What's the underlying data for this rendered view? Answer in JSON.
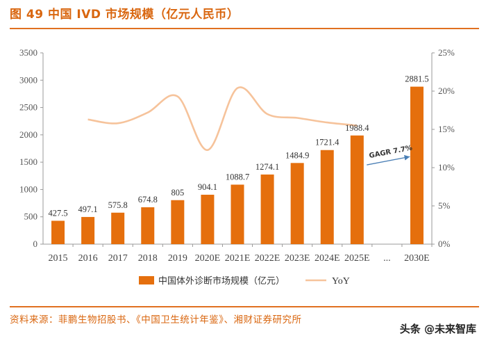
{
  "header": {
    "title": "图 49 中国 IVD 市场规模（亿元人民币）"
  },
  "footer": {
    "source": "资料来源：菲鹏生物招股书、《中国卫生统计年鉴》、湘财证券研究所",
    "watermark": "头条 @未来智库"
  },
  "colors": {
    "bar": "#e56f0d",
    "line": "#f6c39b",
    "accent": "#d9660f",
    "arrow": "#4a7fb5"
  },
  "chart_data": {
    "type": "bar",
    "title": "中国 IVD 市场规模（亿元人民币）",
    "categories": [
      "2015",
      "2016",
      "2017",
      "2018",
      "2019",
      "2020E",
      "2021E",
      "2022E",
      "2023E",
      "2024E",
      "2025E",
      "...",
      "2030E"
    ],
    "series": [
      {
        "name": "中国体外诊断市场规模（亿元）",
        "axis": "left",
        "type": "bar",
        "values": [
          427.5,
          497.1,
          575.8,
          674.8,
          805,
          904.1,
          1088.7,
          1274.1,
          1484.9,
          1721.4,
          1988.4,
          null,
          2881.5
        ],
        "labels": [
          "427.5",
          "497.1",
          "575.8",
          "674.8",
          "805",
          "904.1",
          "1088.7",
          "1274.1",
          "1484.9",
          "1721.4",
          "1988.4",
          "",
          "2881.5"
        ]
      },
      {
        "name": "YoY",
        "axis": "right",
        "type": "line",
        "values": [
          null,
          16.3,
          15.8,
          17.2,
          19.3,
          12.3,
          20.4,
          17.0,
          16.5,
          15.9,
          15.5,
          null,
          null
        ]
      }
    ],
    "y_left": {
      "min": 0,
      "max": 3500,
      "ticks": [
        "0",
        "500",
        "1000",
        "1500",
        "2000",
        "2500",
        "3000",
        "3500"
      ]
    },
    "y_right": {
      "min": 0,
      "max": 25,
      "ticks": [
        "0%",
        "5%",
        "10%",
        "15%",
        "20%",
        "25%"
      ]
    },
    "annotation": {
      "text": "GAGR 7.7%",
      "from_category": "2025E",
      "to_category": "2030E"
    },
    "legend": {
      "position": "bottom",
      "items": [
        "中国体外诊断市场规模（亿元）",
        "YoY"
      ]
    }
  }
}
